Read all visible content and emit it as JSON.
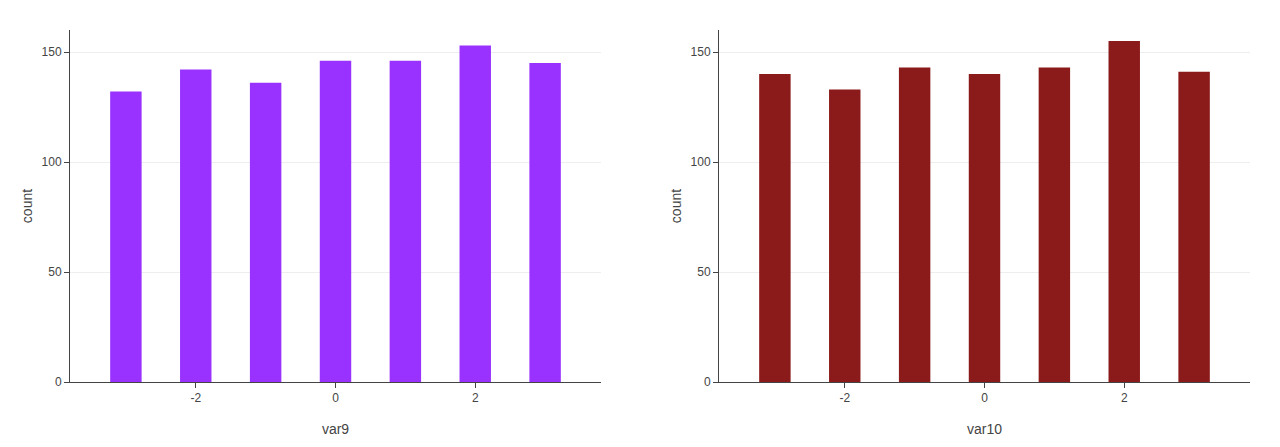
{
  "chart_data": [
    {
      "type": "bar",
      "x": [
        -3,
        -2,
        -1,
        0,
        1,
        2,
        3
      ],
      "values": [
        132,
        142,
        136,
        146,
        146,
        153,
        145
      ],
      "color": "#9932FF",
      "xlabel": "var9",
      "ylabel": "count",
      "xlim": [
        -3.8,
        3.8
      ],
      "xticks": [
        -2,
        0,
        2
      ],
      "ylim": [
        0,
        160
      ],
      "yticks": [
        0,
        50,
        100,
        150
      ],
      "grid": "y"
    },
    {
      "type": "bar",
      "x": [
        -3,
        -2,
        -1,
        0,
        1,
        2,
        3
      ],
      "values": [
        140,
        133,
        143,
        140,
        143,
        155,
        141
      ],
      "color": "#8B1A1A",
      "xlabel": "var10",
      "ylabel": "count",
      "xlim": [
        -3.8,
        3.8
      ],
      "xticks": [
        -2,
        0,
        2
      ],
      "ylim": [
        0,
        160
      ],
      "yticks": [
        0,
        50,
        100,
        150
      ],
      "grid": "y"
    }
  ]
}
